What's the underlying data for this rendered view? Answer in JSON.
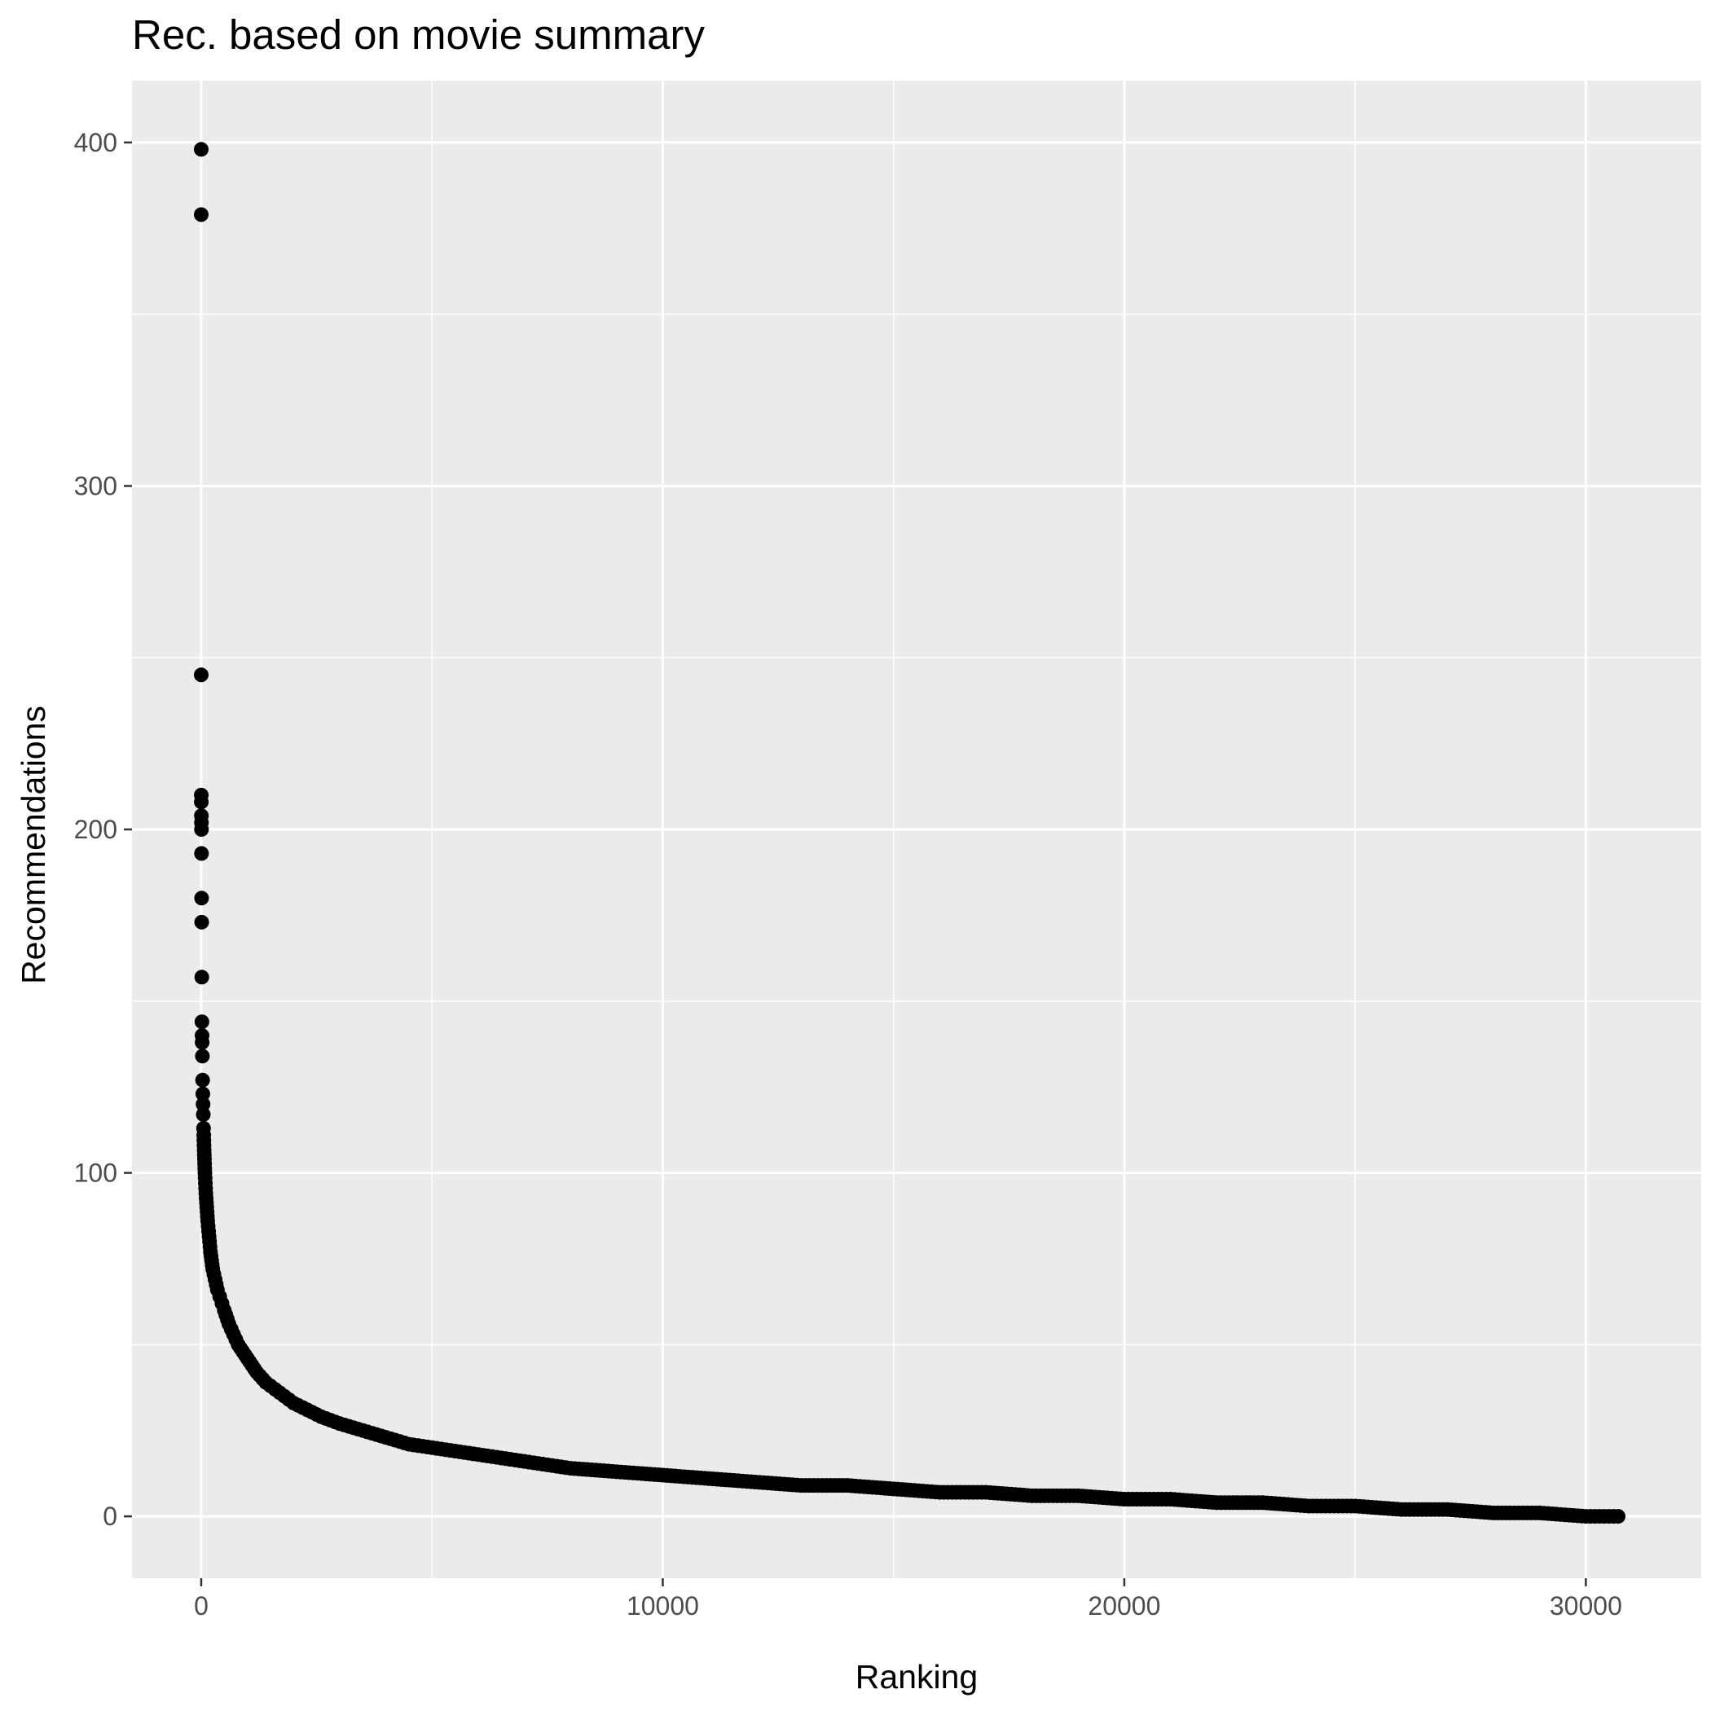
{
  "chart_data": {
    "type": "scatter",
    "title": "Rec. based on movie summary",
    "xlabel": "Ranking",
    "ylabel": "Recommendations",
    "xlim": [
      -1500,
      32500
    ],
    "ylim": [
      -18,
      418
    ],
    "x_ticks": [
      0,
      10000,
      20000,
      30000
    ],
    "y_ticks": [
      0,
      100,
      200,
      300,
      400
    ],
    "x_tick_labels": [
      "0",
      "10000",
      "20000",
      "30000"
    ],
    "y_tick_labels": [
      "0",
      "100",
      "200",
      "300",
      "400"
    ],
    "grid": true,
    "legend": "none",
    "point_color": "#000000",
    "panel_color": "#ebebeb",
    "series": [
      {
        "points": [
          [
            0,
            398
          ],
          [
            0,
            379
          ],
          [
            0,
            245
          ],
          [
            1,
            210
          ],
          [
            2,
            208
          ],
          [
            3,
            204
          ],
          [
            4,
            202
          ],
          [
            5,
            200
          ],
          [
            6,
            193
          ],
          [
            8,
            180
          ],
          [
            10,
            173
          ],
          [
            12,
            157
          ],
          [
            15,
            144
          ],
          [
            18,
            140
          ],
          [
            20,
            138
          ],
          [
            25,
            134
          ],
          [
            30,
            127
          ],
          [
            35,
            123
          ],
          [
            40,
            120
          ],
          [
            45,
            117
          ],
          [
            50,
            113
          ],
          [
            55,
            111
          ],
          [
            60,
            108
          ],
          [
            70,
            104
          ],
          [
            80,
            100
          ],
          [
            90,
            97
          ],
          [
            100,
            94
          ],
          [
            120,
            90
          ],
          [
            140,
            86
          ],
          [
            160,
            83
          ],
          [
            180,
            80
          ],
          [
            200,
            77
          ],
          [
            250,
            72
          ],
          [
            300,
            69
          ],
          [
            350,
            66
          ],
          [
            400,
            64
          ],
          [
            450,
            62
          ],
          [
            500,
            60
          ],
          [
            600,
            56
          ],
          [
            700,
            53
          ],
          [
            800,
            50
          ],
          [
            900,
            48
          ],
          [
            1000,
            46
          ],
          [
            1200,
            42
          ],
          [
            1400,
            39
          ],
          [
            1600,
            37
          ],
          [
            1800,
            35
          ],
          [
            2000,
            33
          ],
          [
            2300,
            31
          ],
          [
            2600,
            29
          ],
          [
            3000,
            27
          ],
          [
            3500,
            25
          ],
          [
            4000,
            23
          ],
          [
            4500,
            21
          ],
          [
            5000,
            20
          ],
          [
            5500,
            19
          ],
          [
            6000,
            18
          ],
          [
            6500,
            17
          ],
          [
            7000,
            16
          ],
          [
            7500,
            15
          ],
          [
            8000,
            14
          ],
          [
            9000,
            13
          ],
          [
            10000,
            12
          ],
          [
            11000,
            11
          ],
          [
            12000,
            10
          ],
          [
            13000,
            9
          ],
          [
            14000,
            9
          ],
          [
            15000,
            8
          ],
          [
            16000,
            7
          ],
          [
            17000,
            7
          ],
          [
            18000,
            6
          ],
          [
            19000,
            6
          ],
          [
            20000,
            5
          ],
          [
            21000,
            5
          ],
          [
            22000,
            4
          ],
          [
            23000,
            4
          ],
          [
            24000,
            3
          ],
          [
            25000,
            3
          ],
          [
            26000,
            2
          ],
          [
            27000,
            2
          ],
          [
            28000,
            1
          ],
          [
            29000,
            1
          ],
          [
            30000,
            0
          ],
          [
            30700,
            0
          ]
        ]
      }
    ]
  }
}
